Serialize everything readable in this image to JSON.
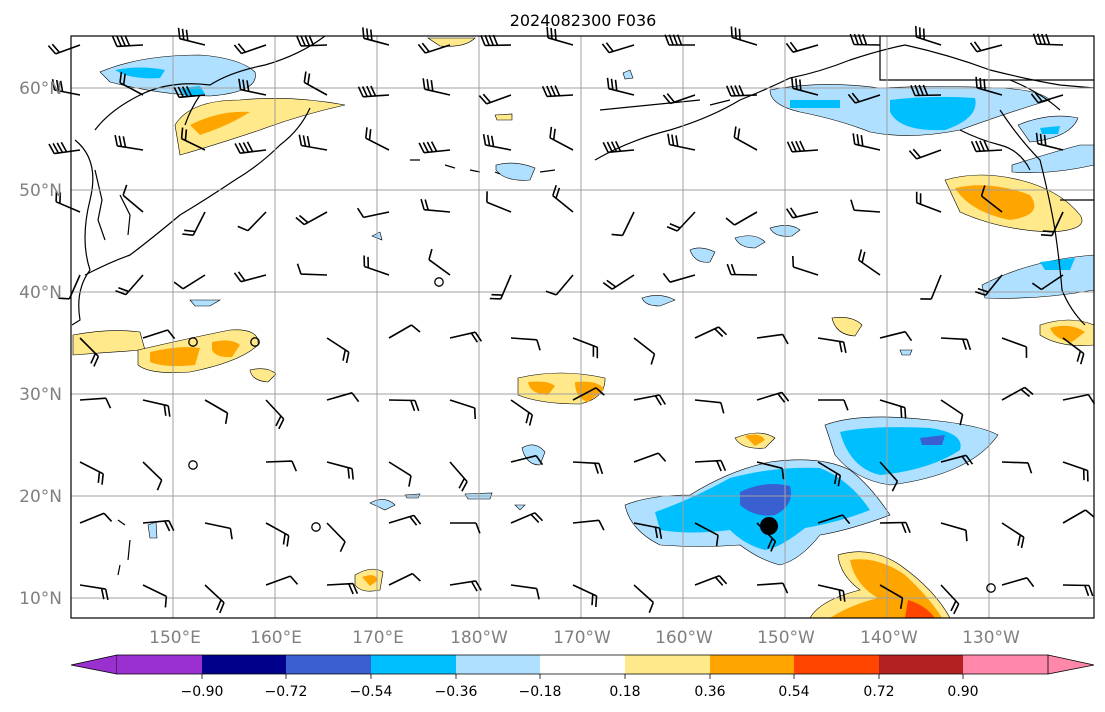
{
  "title": "2024082300 F036",
  "map": {
    "lat_labels": [
      "60°N",
      "50°N",
      "40°N",
      "30°N",
      "20°N",
      "10°N"
    ],
    "lon_labels": [
      "150°E",
      "160°E",
      "170°E",
      "180°W",
      "170°W",
      "160°W",
      "150°W",
      "140°W",
      "130°W"
    ],
    "label_color": "#808080",
    "grid_color": "#a0a0a0",
    "center_marker": "filled-circle",
    "calm_marker": "open-circle"
  },
  "colorbar": {
    "ticks": [
      "−0.90",
      "−0.72",
      "−0.54",
      "−0.36",
      "−0.18",
      "0.18",
      "0.36",
      "0.54",
      "0.72",
      "0.90"
    ],
    "colors": [
      "#9a30d0",
      "#00008b",
      "#3a5fd0",
      "#00bfff",
      "#b0e0ff",
      "#ffffff",
      "#ffe98a",
      "#ffa500",
      "#ff4500",
      "#b22222",
      "#ff88aa"
    ]
  }
}
